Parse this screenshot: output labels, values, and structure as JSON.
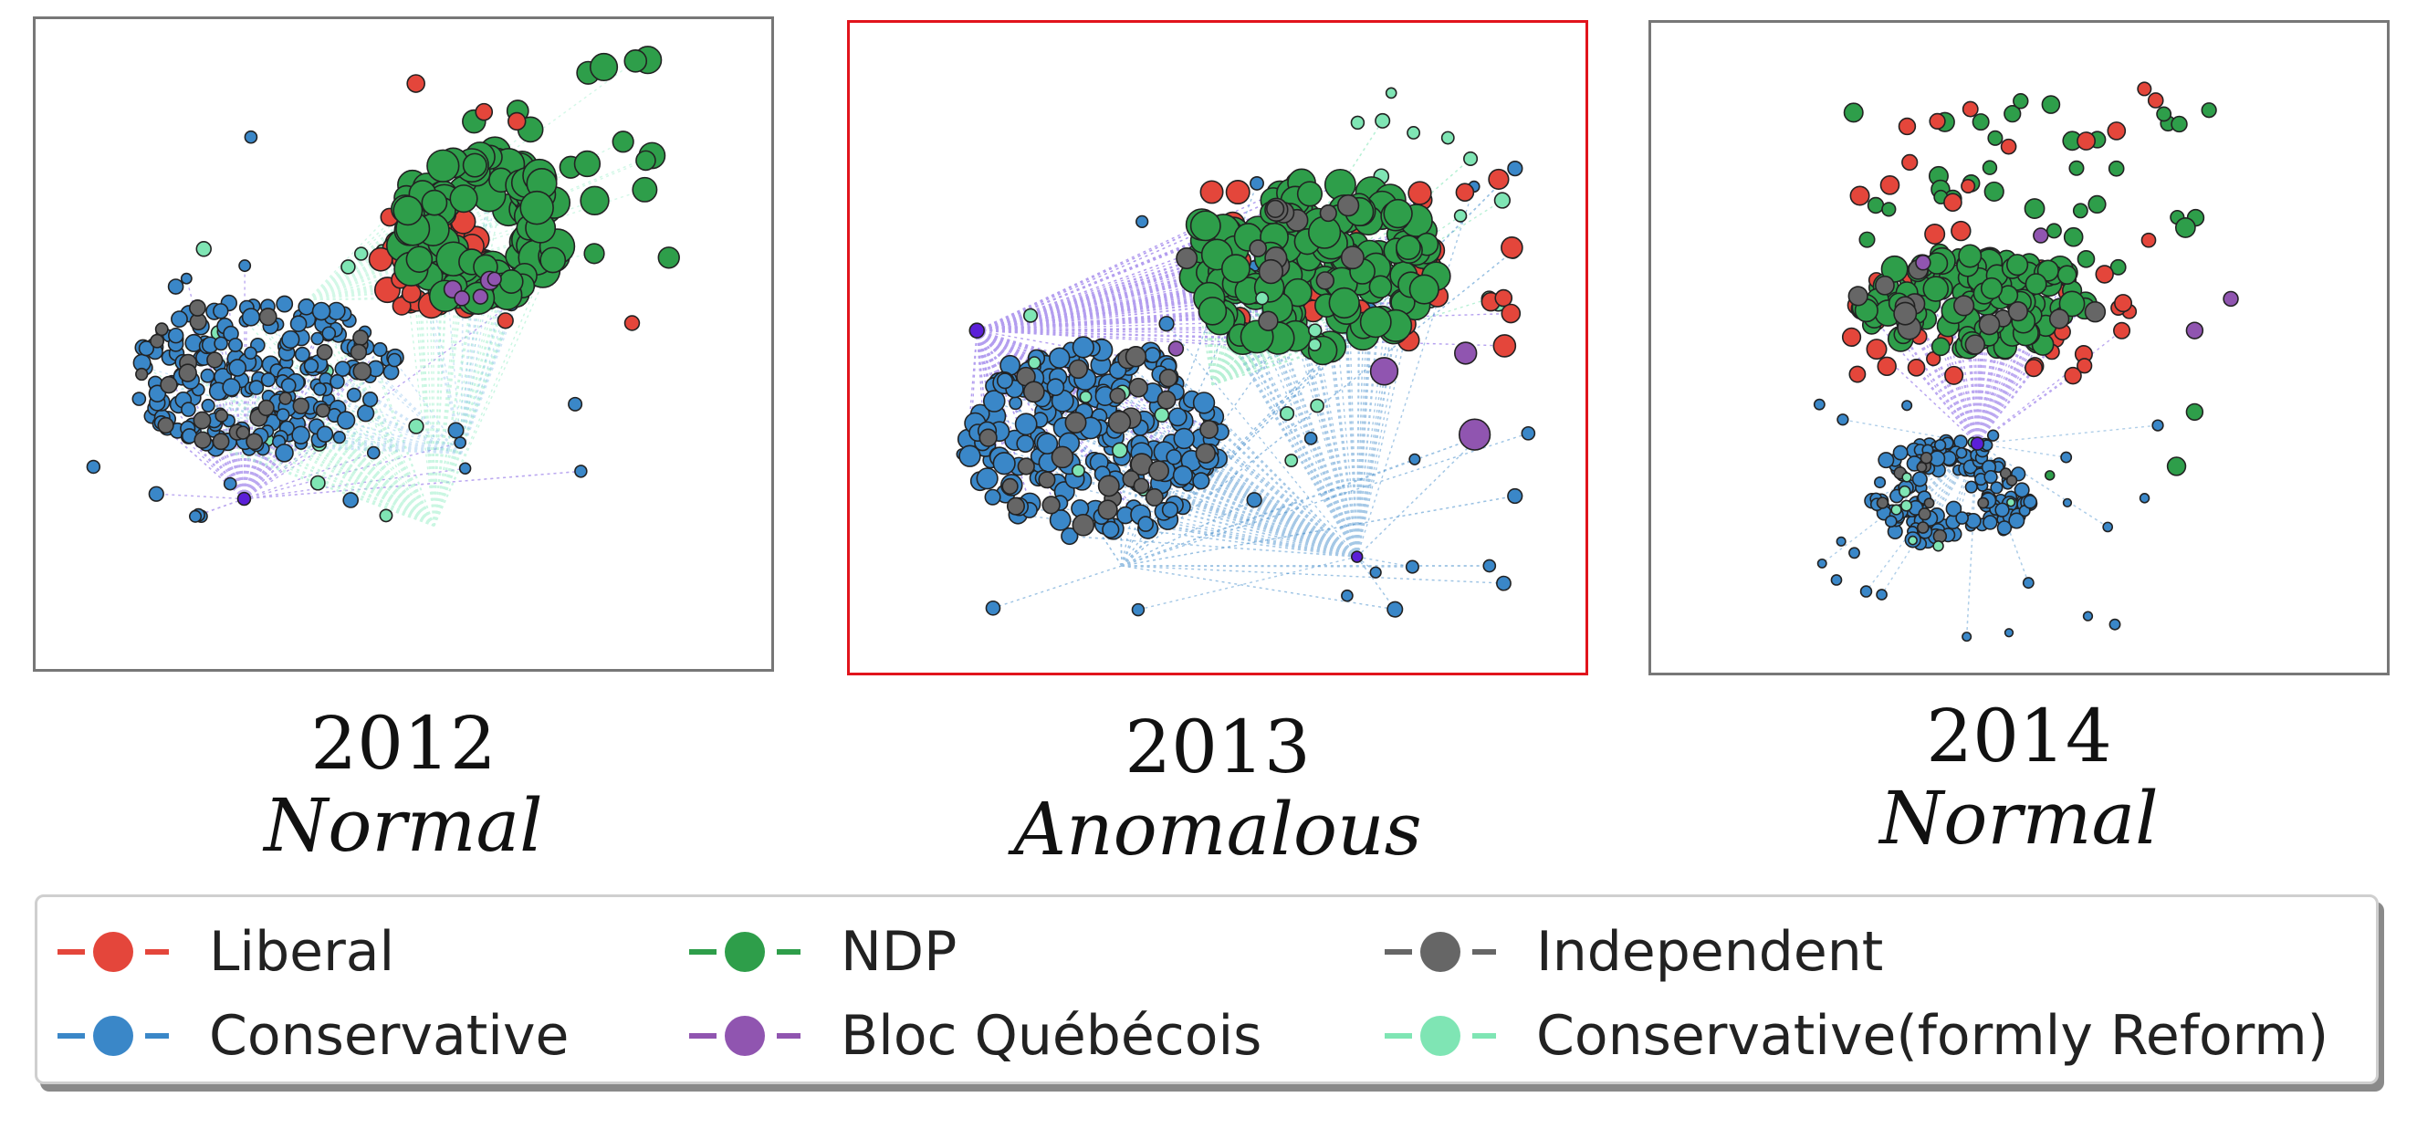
{
  "panels": [
    {
      "year": "2012",
      "status": "Normal"
    },
    {
      "year": "2013",
      "status": "Anomalous"
    },
    {
      "year": "2014",
      "status": "Normal"
    }
  ],
  "legend": [
    {
      "label": "Liberal",
      "color": "#e4463b"
    },
    {
      "label": "NDP",
      "color": "#2e9e4a"
    },
    {
      "label": "Independent",
      "color": "#666666"
    },
    {
      "label": "Conservative",
      "color": "#3a87c8"
    },
    {
      "label": "Bloc Québécois",
      "color": "#9055b0"
    },
    {
      "label": "Conservative(formly Reform)",
      "color": "#7fe5b4"
    }
  ],
  "colors": {
    "liberal": "#e4463b",
    "ndp": "#2e9e4a",
    "independent": "#666666",
    "conservative": "#3a87c8",
    "bloc": "#9055b0",
    "reform": "#7fe5b4",
    "hub": "#5b1fd8",
    "anomalous_border": "#e1141c",
    "normal_border": "#777777"
  }
}
